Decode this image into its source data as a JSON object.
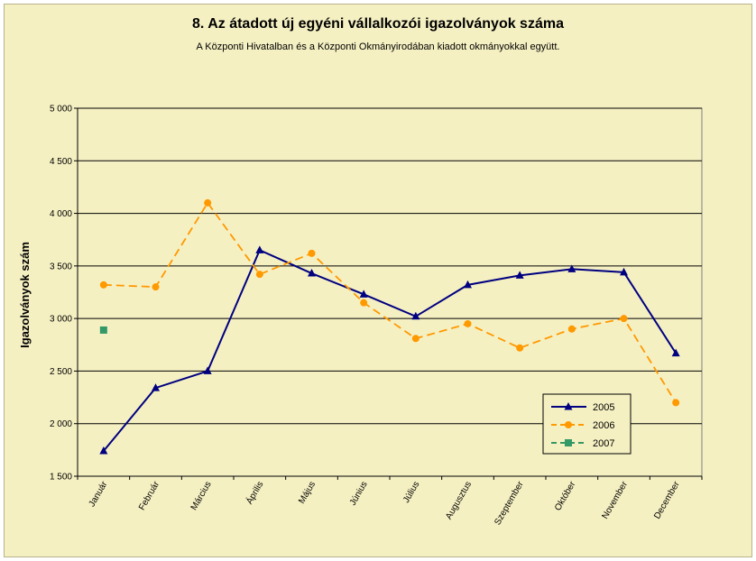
{
  "chart_data": {
    "type": "line",
    "title": "8. Az átadott új egyéni vállalkozói  igazolványok száma",
    "subtitle": "A Központi Hivatalban és a Központi Okmányirodában kiadott okmányokkal együtt.",
    "ylabel": "Igazolványok szám",
    "xlabel": "",
    "categories": [
      "Január",
      "Február",
      "Március",
      "Április",
      "Május",
      "Június",
      "Július",
      "Augusztus",
      "Szeptember",
      "Október",
      "November",
      "December"
    ],
    "ylim": [
      1500,
      5000
    ],
    "yticks": [
      "1 500",
      "2 000",
      "2 500",
      "3 000",
      "3 500",
      "4 000",
      "4 500",
      "5 000"
    ],
    "ytick_values": [
      1500,
      2000,
      2500,
      3000,
      3500,
      4000,
      4500,
      5000
    ],
    "grid": true,
    "legend_position": "bottom-right",
    "series": [
      {
        "name": "2005",
        "color": "#000080",
        "marker": "triangle",
        "dash": "solid",
        "values": [
          1740,
          2340,
          2500,
          3650,
          3430,
          3230,
          3020,
          3320,
          3410,
          3470,
          3440,
          2670
        ]
      },
      {
        "name": "2006",
        "color": "#ff9900",
        "marker": "circle",
        "dash": "dashed",
        "values": [
          3320,
          3300,
          4100,
          3420,
          3620,
          3150,
          2810,
          2950,
          2720,
          2900,
          3000,
          2200
        ]
      },
      {
        "name": "2007",
        "color": "#339966",
        "marker": "square",
        "dash": "dashed",
        "values": [
          2890,
          null,
          null,
          null,
          null,
          null,
          null,
          null,
          null,
          null,
          null,
          null
        ]
      }
    ]
  }
}
